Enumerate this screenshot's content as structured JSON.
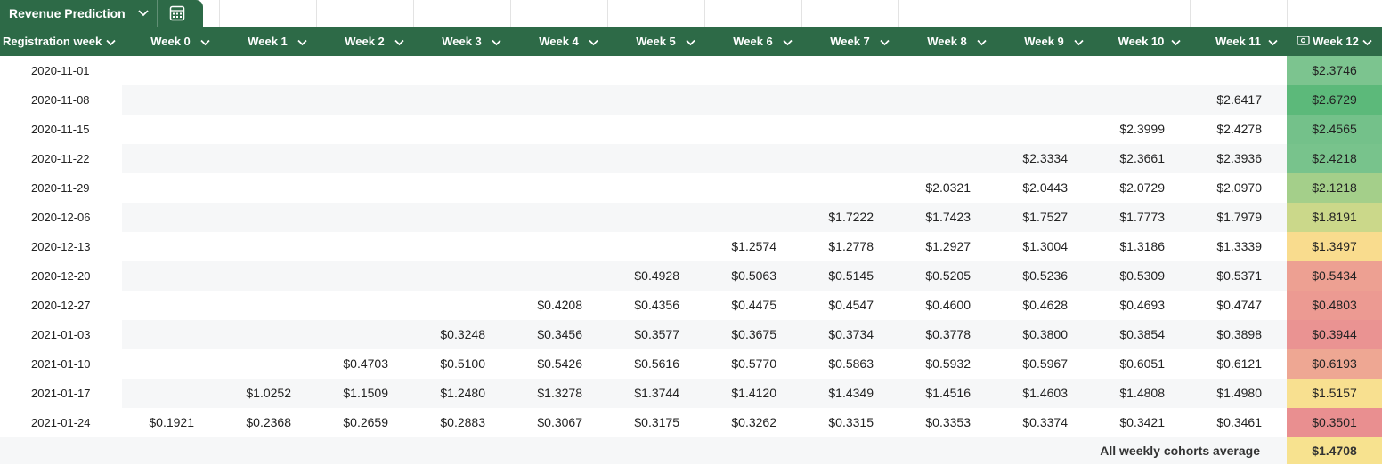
{
  "tab": {
    "title": "Revenue Prediction",
    "calculator_icon": "calculator-icon"
  },
  "header": {
    "first_column": "Registration week",
    "weeks": [
      "Week 0",
      "Week 1",
      "Week 2",
      "Week 3",
      "Week 4",
      "Week 5",
      "Week 6",
      "Week 7",
      "Week 8",
      "Week 9",
      "Week 10",
      "Week 11",
      "Week 12"
    ],
    "last_column_icon": "money-icon"
  },
  "rows": [
    {
      "date": "2020-11-01",
      "cells": [
        "",
        "",
        "",
        "",
        "",
        "",
        "",
        "",
        "",
        "",
        "",
        ""
      ],
      "week12": "$2.3746",
      "week12_color": "#7cc48f"
    },
    {
      "date": "2020-11-08",
      "cells": [
        "",
        "",
        "",
        "",
        "",
        "",
        "",
        "",
        "",
        "",
        "",
        "$2.6417"
      ],
      "week12": "$2.6729",
      "week12_color": "#5cb97a"
    },
    {
      "date": "2020-11-15",
      "cells": [
        "",
        "",
        "",
        "",
        "",
        "",
        "",
        "",
        "",
        "",
        "$2.3999",
        "$2.4278"
      ],
      "week12": "$2.4565",
      "week12_color": "#74c18a"
    },
    {
      "date": "2020-11-22",
      "cells": [
        "",
        "",
        "",
        "",
        "",
        "",
        "",
        "",
        "",
        "$2.3334",
        "$2.3661",
        "$2.3936"
      ],
      "week12": "$2.4218",
      "week12_color": "#78c38c"
    },
    {
      "date": "2020-11-29",
      "cells": [
        "",
        "",
        "",
        "",
        "",
        "",
        "",
        "",
        "$2.0321",
        "$2.0443",
        "$2.0729",
        "$2.0970"
      ],
      "week12": "$2.1218",
      "week12_color": "#a4cf8a"
    },
    {
      "date": "2020-12-06",
      "cells": [
        "",
        "",
        "",
        "",
        "",
        "",
        "",
        "$1.7222",
        "$1.7423",
        "$1.7527",
        "$1.7773",
        "$1.7979"
      ],
      "week12": "$1.8191",
      "week12_color": "#cbd88a"
    },
    {
      "date": "2020-12-13",
      "cells": [
        "",
        "",
        "",
        "",
        "",
        "",
        "$1.2574",
        "$1.2778",
        "$1.2927",
        "$1.3004",
        "$1.3186",
        "$1.3339"
      ],
      "week12": "$1.3497",
      "week12_color": "#f9dc8e"
    },
    {
      "date": "2020-12-20",
      "cells": [
        "",
        "",
        "",
        "",
        "",
        "$0.4928",
        "$0.5063",
        "$0.5145",
        "$0.5205",
        "$0.5236",
        "$0.5309",
        "$0.5371"
      ],
      "week12": "$0.5434",
      "week12_color": "#eda092"
    },
    {
      "date": "2020-12-27",
      "cells": [
        "",
        "",
        "",
        "",
        "$0.4208",
        "$0.4356",
        "$0.4475",
        "$0.4547",
        "$0.4600",
        "$0.4628",
        "$0.4693",
        "$0.4747"
      ],
      "week12": "$0.4803",
      "week12_color": "#ec9a92"
    },
    {
      "date": "2021-01-03",
      "cells": [
        "",
        "",
        "",
        "$0.3248",
        "$0.3456",
        "$0.3577",
        "$0.3675",
        "$0.3734",
        "$0.3778",
        "$0.3800",
        "$0.3854",
        "$0.3898"
      ],
      "week12": "$0.3944",
      "week12_color": "#ea9392"
    },
    {
      "date": "2021-01-10",
      "cells": [
        "",
        "",
        "$0.4703",
        "$0.5100",
        "$0.5426",
        "$0.5616",
        "$0.5770",
        "$0.5863",
        "$0.5932",
        "$0.5967",
        "$0.6051",
        "$0.6121"
      ],
      "week12": "$0.6193",
      "week12_color": "#eea793"
    },
    {
      "date": "2021-01-17",
      "cells": [
        "",
        "$1.0252",
        "$1.1509",
        "$1.2480",
        "$1.3278",
        "$1.3744",
        "$1.4120",
        "$1.4349",
        "$1.4516",
        "$1.4603",
        "$1.4808",
        "$1.4980"
      ],
      "week12": "$1.5157",
      "week12_color": "#f8e090"
    },
    {
      "date": "2021-01-24",
      "cells": [
        "$0.1921",
        "$0.2368",
        "$0.2659",
        "$0.2883",
        "$0.3067",
        "$0.3175",
        "$0.3262",
        "$0.3315",
        "$0.3353",
        "$0.3374",
        "$0.3421",
        "$0.3461"
      ],
      "week12": "$0.3501",
      "week12_color": "#e98f90"
    }
  ],
  "footer": {
    "label": "All weekly cohorts average",
    "value": "$1.4708",
    "value_color": "#f7e28f"
  }
}
